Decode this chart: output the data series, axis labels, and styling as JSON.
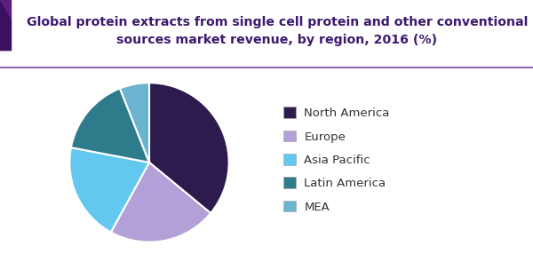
{
  "title_line1": "Global protein extracts from single cell protein and other conventional",
  "title_line2": "sources market revenue, by region, 2016 (%)",
  "title_color": "#3d1a6e",
  "title_fontsize": 10.2,
  "slices": [
    {
      "label": "North America",
      "value": 36,
      "color": "#2d1b4e"
    },
    {
      "label": "Europe",
      "value": 22,
      "color": "#b3a0d9"
    },
    {
      "label": "Asia Pacific",
      "value": 20,
      "color": "#62c8f0"
    },
    {
      "label": "Latin America",
      "value": 16,
      "color": "#2e7b8c"
    },
    {
      "label": "MEA",
      "value": 6,
      "color": "#6ab4d0"
    }
  ],
  "legend_fontsize": 9.5,
  "background_color": "#ffffff",
  "header_line_color": "#7b3f9e",
  "wedge_edge_color": "#ffffff",
  "wedge_linewidth": 1.5,
  "deco_color1": "#5a2080",
  "deco_color2": "#3a1060",
  "startangle": 90
}
